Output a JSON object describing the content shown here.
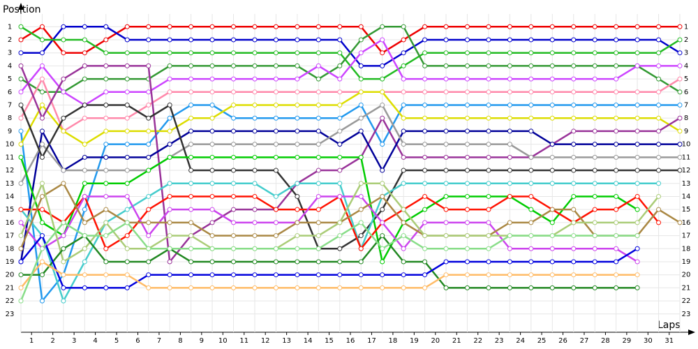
{
  "chart_data": {
    "type": "line",
    "y_label": "Position",
    "x_label": "Laps",
    "x": [
      0,
      1,
      2,
      3,
      4,
      5,
      6,
      7,
      8,
      9,
      10,
      11,
      12,
      13,
      14,
      15,
      16,
      17,
      18,
      19,
      20,
      21,
      22,
      23,
      24,
      25,
      26,
      27,
      28,
      29,
      30,
      31
    ],
    "xlim": [
      0,
      31
    ],
    "xticks": [
      {
        "value": 0.5,
        "label": "1"
      },
      {
        "value": 1.5,
        "label": "2"
      },
      {
        "value": 2.5,
        "label": "3"
      },
      {
        "value": 3.5,
        "label": "4"
      },
      {
        "value": 4.5,
        "label": "5"
      },
      {
        "value": 5.5,
        "label": "6"
      },
      {
        "value": 6.5,
        "label": "7"
      },
      {
        "value": 7.5,
        "label": "8"
      },
      {
        "value": 8.5,
        "label": "9"
      },
      {
        "value": 9.5,
        "label": "10"
      },
      {
        "value": 10.5,
        "label": "11"
      },
      {
        "value": 11.5,
        "label": "12"
      },
      {
        "value": 12.5,
        "label": "13"
      },
      {
        "value": 13.5,
        "label": "14"
      },
      {
        "value": 14.5,
        "label": "15"
      },
      {
        "value": 15.5,
        "label": "16"
      },
      {
        "value": 16.5,
        "label": "17"
      },
      {
        "value": 17.5,
        "label": "18"
      },
      {
        "value": 18.5,
        "label": "19"
      },
      {
        "value": 19.5,
        "label": "20"
      },
      {
        "value": 20.5,
        "label": "21"
      },
      {
        "value": 21.5,
        "label": "22"
      },
      {
        "value": 22.5,
        "label": "23"
      },
      {
        "value": 23.5,
        "label": "24"
      },
      {
        "value": 24.5,
        "label": "25"
      },
      {
        "value": 25.5,
        "label": "26"
      },
      {
        "value": 26.5,
        "label": "27"
      },
      {
        "value": 27.5,
        "label": "28"
      },
      {
        "value": 28.5,
        "label": "29"
      },
      {
        "value": 29.5,
        "label": "30"
      },
      {
        "value": 30.5,
        "label": "31"
      }
    ],
    "ylim": [
      24.4,
      -1.1
    ],
    "yticks": [
      1,
      2,
      3,
      4,
      5,
      6,
      7,
      8,
      9,
      10,
      11,
      12,
      13,
      14,
      15,
      16,
      17,
      18,
      19,
      20,
      21,
      22,
      23
    ],
    "grid": true,
    "series": [
      {
        "color": "#ee0000",
        "values": [
          2,
          1,
          3,
          3,
          2,
          1,
          1,
          1,
          1,
          1,
          1,
          1,
          1,
          1,
          1,
          1,
          1,
          3,
          2,
          1,
          1,
          1,
          1,
          1,
          1,
          1,
          1,
          1,
          1,
          1,
          1,
          1
        ]
      },
      {
        "color": "#0000cc",
        "values": [
          3,
          3,
          1,
          1,
          1,
          2,
          2,
          2,
          2,
          2,
          2,
          2,
          2,
          2,
          2,
          2,
          4,
          4,
          3,
          2,
          2,
          2,
          2,
          2,
          2,
          2,
          2,
          2,
          2,
          2,
          2,
          3
        ]
      },
      {
        "color": "#22bb22",
        "values": [
          1,
          2,
          2,
          2,
          3,
          3,
          3,
          3,
          3,
          3,
          3,
          3,
          3,
          3,
          3,
          3,
          5,
          5,
          4,
          3,
          3,
          3,
          3,
          3,
          3,
          3,
          3,
          3,
          3,
          3,
          3,
          2
        ]
      },
      {
        "color": "#339933",
        "values": [
          5,
          6,
          6,
          5,
          5,
          5,
          5,
          4,
          4,
          4,
          4,
          4,
          4,
          4,
          5,
          4,
          2,
          1,
          1,
          4,
          4,
          4,
          4,
          4,
          4,
          4,
          4,
          4,
          4,
          4,
          5,
          6
        ]
      },
      {
        "color": "#cc44ff",
        "values": [
          6,
          4,
          6,
          7,
          6,
          6,
          6,
          5,
          5,
          5,
          5,
          5,
          5,
          5,
          4,
          5,
          3,
          2,
          5,
          5,
          5,
          5,
          5,
          5,
          5,
          5,
          5,
          5,
          5,
          4,
          4,
          4
        ]
      },
      {
        "color": "#ff88aa",
        "values": [
          8,
          5,
          9,
          8,
          8,
          8,
          7,
          6,
          6,
          6,
          6,
          6,
          6,
          6,
          6,
          6,
          6,
          6,
          6,
          6,
          6,
          6,
          6,
          6,
          6,
          6,
          6,
          6,
          6,
          6,
          6,
          5
        ]
      },
      {
        "color": "#2299ee",
        "values": [
          9,
          22,
          20,
          15,
          10,
          10,
          10,
          8,
          7,
          7,
          8,
          8,
          8,
          8,
          8,
          8,
          7,
          10,
          7,
          7,
          7,
          7,
          7,
          7,
          7,
          7,
          7,
          7,
          7,
          7,
          7,
          7
        ]
      },
      {
        "color": "#dddd00",
        "values": [
          10,
          7,
          9,
          10,
          9,
          9,
          9,
          9,
          8,
          8,
          7,
          7,
          7,
          7,
          7,
          7,
          6,
          6,
          8,
          8,
          8,
          8,
          8,
          8,
          8,
          8,
          8,
          8,
          8,
          8,
          8,
          9
        ]
      },
      {
        "color": "#993399",
        "values": [
          4,
          8,
          5,
          4,
          4,
          4,
          4,
          19,
          17,
          16,
          15,
          15,
          15,
          13,
          12,
          12,
          11,
          8,
          11,
          11,
          11,
          11,
          11,
          11,
          11,
          10,
          9,
          9,
          9,
          9,
          9,
          8
        ]
      },
      {
        "color": "#000099",
        "values": [
          19,
          9,
          12,
          11,
          11,
          11,
          11,
          10,
          9,
          9,
          9,
          9,
          9,
          9,
          9,
          10,
          9,
          12,
          9,
          9,
          9,
          9,
          9,
          9,
          9,
          10,
          10,
          10,
          10,
          10,
          10,
          10
        ]
      },
      {
        "color": "#999999",
        "values": [
          13,
          10,
          12,
          12,
          12,
          12,
          12,
          11,
          10,
          10,
          10,
          10,
          10,
          10,
          10,
          9,
          8,
          7,
          10,
          10,
          10,
          10,
          10,
          10,
          11,
          11,
          11,
          11,
          11,
          11,
          11,
          11
        ]
      },
      {
        "color": "#333333",
        "values": [
          7,
          11,
          8,
          7,
          7,
          7,
          8,
          7,
          12,
          12,
          12,
          12,
          12,
          14,
          18,
          18,
          17,
          15,
          12,
          12,
          12,
          12,
          12,
          12,
          12,
          12,
          12,
          12,
          12,
          12,
          12,
          12
        ]
      },
      {
        "color": "#00cc00",
        "values": [
          11,
          16,
          17,
          13,
          13,
          13,
          12,
          11,
          11,
          11,
          11,
          11,
          11,
          11,
          11,
          11,
          11,
          19,
          16,
          15,
          14,
          14,
          14,
          14,
          15,
          16,
          14,
          14,
          14,
          15,
          null,
          null
        ]
      },
      {
        "color": "#44cccc",
        "values": [
          15,
          17,
          22,
          19,
          16,
          15,
          14,
          13,
          13,
          13,
          13,
          13,
          14,
          13,
          13,
          13,
          18,
          14,
          13,
          13,
          13,
          13,
          13,
          13,
          13,
          13,
          13,
          13,
          13,
          13,
          13,
          null
        ]
      },
      {
        "color": "#ff1100",
        "values": [
          15,
          15,
          16,
          14,
          18,
          17,
          15,
          14,
          14,
          14,
          14,
          14,
          15,
          15,
          15,
          14,
          18,
          16,
          15,
          14,
          15,
          15,
          15,
          14,
          14,
          15,
          16,
          15,
          15,
          14,
          16,
          null
        ]
      },
      {
        "color": "#cc44ee",
        "values": [
          16,
          18,
          17,
          14,
          14,
          14,
          17,
          15,
          15,
          15,
          16,
          16,
          16,
          16,
          14,
          14,
          14,
          16,
          18,
          16,
          16,
          16,
          16,
          18,
          18,
          18,
          18,
          18,
          18,
          19,
          null,
          null
        ]
      },
      {
        "color": "#aa8844",
        "values": [
          18,
          14,
          13,
          16,
          15,
          16,
          16,
          16,
          16,
          17,
          17,
          17,
          17,
          16,
          16,
          16,
          15,
          14,
          16,
          17,
          17,
          17,
          17,
          16,
          16,
          15,
          15,
          17,
          17,
          17,
          15,
          16
        ]
      },
      {
        "color": "#aacc77",
        "values": [
          17,
          13,
          19,
          18,
          16,
          18,
          18,
          17,
          17,
          18,
          18,
          18,
          18,
          17,
          17,
          16,
          13,
          13,
          15,
          17,
          17,
          17,
          17,
          17,
          17,
          17,
          16,
          16,
          16,
          16,
          14,
          null
        ]
      },
      {
        "color": "#228822",
        "values": [
          20,
          20,
          18,
          17,
          19,
          19,
          19,
          18,
          19,
          19,
          19,
          19,
          19,
          19,
          19,
          19,
          19,
          17,
          19,
          19,
          21,
          21,
          21,
          21,
          21,
          21,
          21,
          21,
          21,
          21,
          null,
          null
        ]
      },
      {
        "color": "#0000dd",
        "values": [
          19,
          17,
          21,
          21,
          21,
          21,
          20,
          20,
          20,
          20,
          20,
          20,
          20,
          20,
          20,
          20,
          20,
          20,
          20,
          20,
          19,
          19,
          19,
          19,
          19,
          19,
          19,
          19,
          19,
          18,
          null,
          null
        ]
      },
      {
        "color": "#ffbb66",
        "values": [
          21,
          19,
          20,
          20,
          20,
          20,
          21,
          21,
          21,
          21,
          21,
          21,
          21,
          21,
          21,
          21,
          21,
          21,
          21,
          21,
          20,
          20,
          20,
          20,
          20,
          20,
          20,
          20,
          20,
          20,
          null,
          null
        ]
      },
      {
        "color": "#88dd88",
        "values": [
          22,
          18,
          16,
          17,
          17,
          16,
          18,
          18,
          18,
          18,
          18,
          18,
          18,
          18,
          18,
          17,
          16,
          18,
          17,
          18,
          18,
          18,
          18,
          17,
          17,
          17,
          17,
          17,
          17,
          17,
          null,
          null
        ]
      }
    ]
  }
}
